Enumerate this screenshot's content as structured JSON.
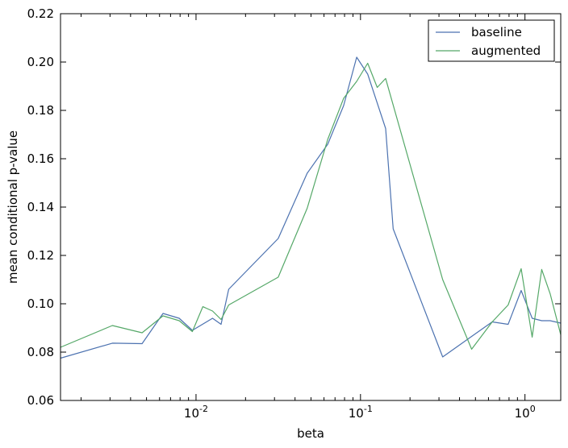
{
  "chart_data": {
    "type": "line",
    "xlabel": "beta",
    "ylabel": "mean conditional p-value",
    "xscale": "log",
    "xlim": [
      0.0015,
      1.65
    ],
    "ylim": [
      0.06,
      0.22
    ],
    "yticks": [
      "0.06",
      "0.08",
      "0.10",
      "0.12",
      "0.14",
      "0.16",
      "0.18",
      "0.20",
      "0.22"
    ],
    "xticks": [
      {
        "value": 0.01,
        "base": "10",
        "exp": "-2"
      },
      {
        "value": 0.1,
        "base": "10",
        "exp": "-1"
      },
      {
        "value": 1,
        "base": "10",
        "exp": "0"
      }
    ],
    "grid": false,
    "legend_position": "top-right",
    "series": [
      {
        "name": "baseline",
        "color": "#4c72b0",
        "points": [
          [
            0.0015,
            0.0775
          ],
          [
            0.0031,
            0.0837
          ],
          [
            0.0047,
            0.0835
          ],
          [
            0.0063,
            0.096
          ],
          [
            0.0079,
            0.094
          ],
          [
            0.0095,
            0.089
          ],
          [
            0.0126,
            0.094
          ],
          [
            0.0142,
            0.0915
          ],
          [
            0.0158,
            0.106
          ],
          [
            0.0316,
            0.127
          ],
          [
            0.0474,
            0.154
          ],
          [
            0.0632,
            0.166
          ],
          [
            0.079,
            0.182
          ],
          [
            0.0948,
            0.202
          ],
          [
            0.1106,
            0.195
          ],
          [
            0.1422,
            0.1725
          ],
          [
            0.158,
            0.131
          ],
          [
            0.316,
            0.078
          ],
          [
            0.474,
            0.0865
          ],
          [
            0.632,
            0.0925
          ],
          [
            0.79,
            0.0915
          ],
          [
            0.948,
            0.1055
          ],
          [
            1.106,
            0.094
          ],
          [
            1.264,
            0.093
          ],
          [
            1.422,
            0.093
          ],
          [
            1.65,
            0.092
          ]
        ]
      },
      {
        "name": "augmented",
        "color": "#55a868",
        "points": [
          [
            0.0015,
            0.082
          ],
          [
            0.0031,
            0.091
          ],
          [
            0.0047,
            0.088
          ],
          [
            0.0063,
            0.095
          ],
          [
            0.0079,
            0.093
          ],
          [
            0.0095,
            0.0885
          ],
          [
            0.011,
            0.0988
          ],
          [
            0.0126,
            0.097
          ],
          [
            0.0142,
            0.0935
          ],
          [
            0.0158,
            0.0995
          ],
          [
            0.0316,
            0.111
          ],
          [
            0.0474,
            0.1395
          ],
          [
            0.0632,
            0.168
          ],
          [
            0.079,
            0.185
          ],
          [
            0.0948,
            0.192
          ],
          [
            0.1106,
            0.1995
          ],
          [
            0.1264,
            0.1895
          ],
          [
            0.1422,
            0.1932
          ],
          [
            0.316,
            0.11
          ],
          [
            0.474,
            0.0812
          ],
          [
            0.632,
            0.0925
          ],
          [
            0.79,
            0.0995
          ],
          [
            0.948,
            0.1145
          ],
          [
            1.106,
            0.0862
          ],
          [
            1.264,
            0.1142
          ],
          [
            1.422,
            0.1042
          ],
          [
            1.65,
            0.0872
          ]
        ]
      }
    ]
  }
}
